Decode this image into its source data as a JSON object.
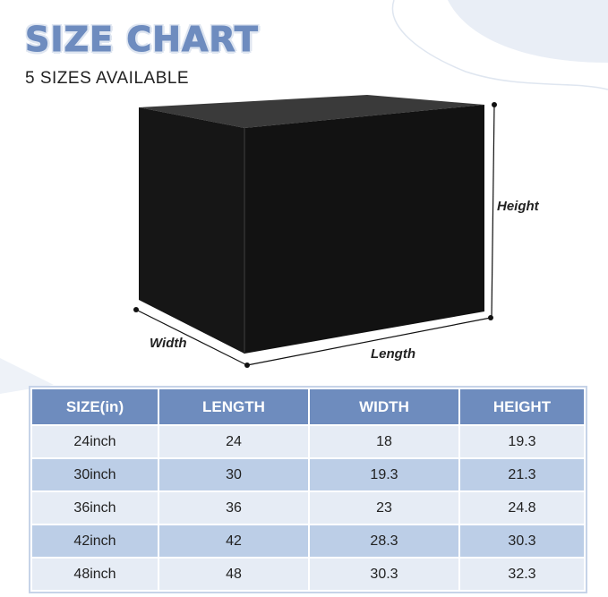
{
  "header": {
    "title": "SIZE CHART",
    "subtitle": "5 SIZES AVAILABLE"
  },
  "diagram": {
    "labels": {
      "height": "Height",
      "width": "Width",
      "length": "Length"
    },
    "product_color": "#111111"
  },
  "colors": {
    "header_bg": "#6e8cbe",
    "row_light": "#e6ecf5",
    "row_dark": "#bccee7",
    "title": "#6e8cbf"
  },
  "table": {
    "columns": [
      "SIZE(in)",
      "LENGTH",
      "WIDTH",
      "HEIGHT"
    ],
    "rows": [
      [
        "24inch",
        "24",
        "18",
        "19.3"
      ],
      [
        "30inch",
        "30",
        "19.3",
        "21.3"
      ],
      [
        "36inch",
        "36",
        "23",
        "24.8"
      ],
      [
        "42inch",
        "42",
        "28.3",
        "30.3"
      ],
      [
        "48inch",
        "48",
        "30.3",
        "32.3"
      ]
    ]
  }
}
